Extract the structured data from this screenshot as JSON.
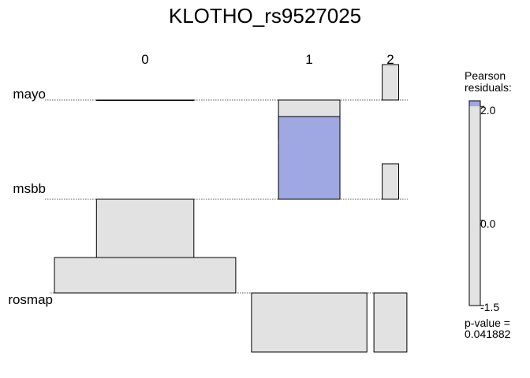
{
  "chart_data": {
    "type": "association",
    "title": "KLOTHO_rs9527025",
    "columns": [
      "0",
      "1",
      "2"
    ],
    "rows": [
      "mayo",
      "msbb",
      "rosmap"
    ],
    "pearson_residuals": [
      [
        0.0,
        -1.0,
        0.9
      ],
      [
        -1.5,
        2.1,
        0.9
      ],
      [
        0.9,
        -1.5,
        -1.5
      ]
    ],
    "sqrt_expected": [
      [
        13.0,
        8.2,
        2.2
      ],
      [
        13.0,
        8.2,
        2.2
      ],
      [
        24.2,
        15.4,
        4.4
      ]
    ],
    "legend": {
      "title_line1": "Pearson",
      "title_line2": "residuals:",
      "max_label": "2.0",
      "mid_label": "0.0",
      "min_label": "-1.5",
      "min": -1.5,
      "max": 2.1,
      "pvalue_label": "p-value =",
      "pvalue": "0.041882"
    },
    "colors": {
      "positive_fill": "#9fa8e2",
      "neutral_fill": "#e2e2e2",
      "outline": "#000000",
      "baseline": "#555555"
    }
  }
}
